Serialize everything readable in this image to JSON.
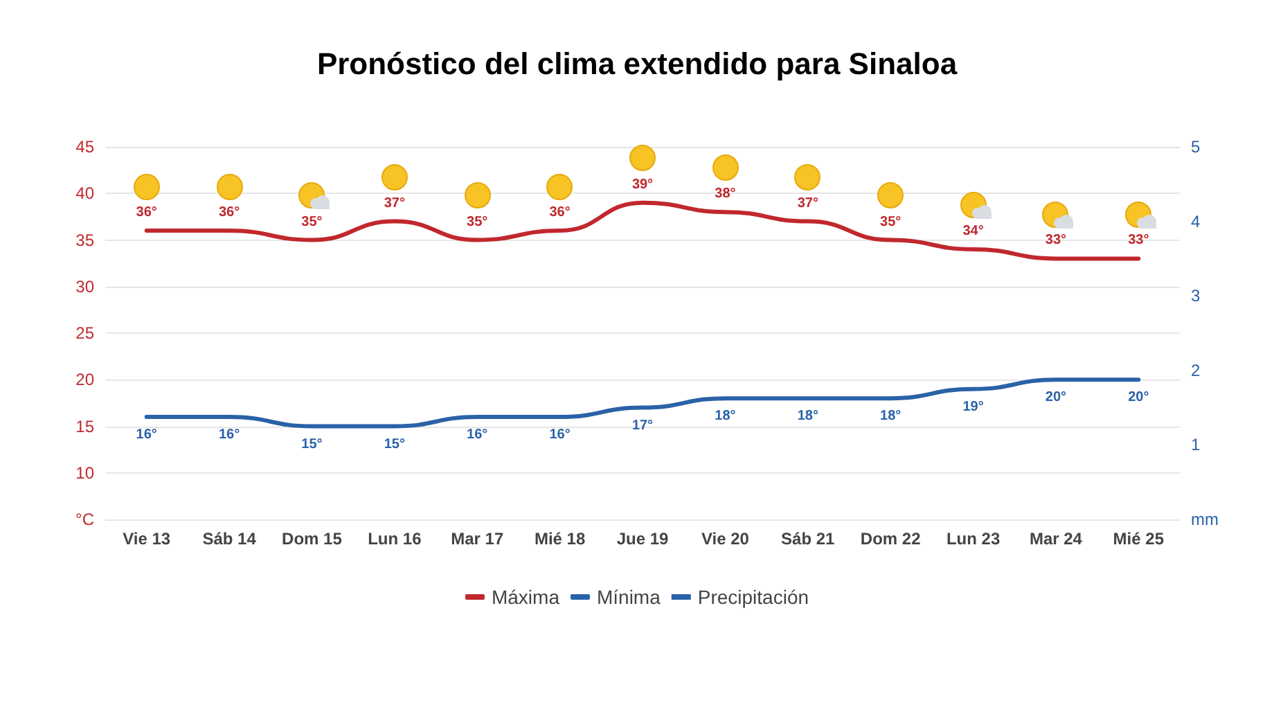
{
  "chart_data": {
    "type": "line",
    "title": "Pronóstico del clima extendido para Sinaloa",
    "categories": [
      "Vie 13",
      "Sáb 14",
      "Dom 15",
      "Lun 16",
      "Mar 17",
      "Mié 18",
      "Jue 19",
      "Vie 20",
      "Sáb 21",
      "Dom 22",
      "Lun 23",
      "Mar 24",
      "Mié 25"
    ],
    "series": [
      {
        "name": "Máxima",
        "color": "#c0282d",
        "values": [
          36,
          36,
          35,
          37,
          35,
          36,
          39,
          38,
          37,
          35,
          34,
          33,
          33
        ],
        "value_labels": [
          "36°",
          "36°",
          "35°",
          "37°",
          "35°",
          "36°",
          "39°",
          "38°",
          "37°",
          "35°",
          "34°",
          "33°",
          "33°"
        ]
      },
      {
        "name": "Mínima",
        "color": "#2a62a8",
        "values": [
          16,
          16,
          15,
          15,
          16,
          16,
          17,
          18,
          18,
          18,
          19,
          20,
          20
        ],
        "value_labels": [
          "16°",
          "16°",
          "15°",
          "15°",
          "16°",
          "16°",
          "17°",
          "18°",
          "18°",
          "18°",
          "19°",
          "20°",
          "20°"
        ]
      },
      {
        "name": "Precipitación",
        "type": "bar",
        "color": "#2a62a8",
        "values": [
          null,
          null,
          null,
          null,
          null,
          null,
          null,
          null,
          null,
          null,
          null,
          null,
          null
        ]
      }
    ],
    "ylim": [
      5,
      45
    ],
    "yticks": [
      {
        "value": 5,
        "label": "°C"
      },
      10,
      15,
      20,
      25,
      30,
      35,
      40,
      45
    ],
    "y2lim": [
      0,
      5
    ],
    "y2ticks": [
      {
        "value": 0,
        "label": "mm"
      },
      1,
      2,
      3,
      4,
      5
    ],
    "grid": "y",
    "legend": "bottom",
    "marker": "none",
    "line_style": "solid"
  }
}
